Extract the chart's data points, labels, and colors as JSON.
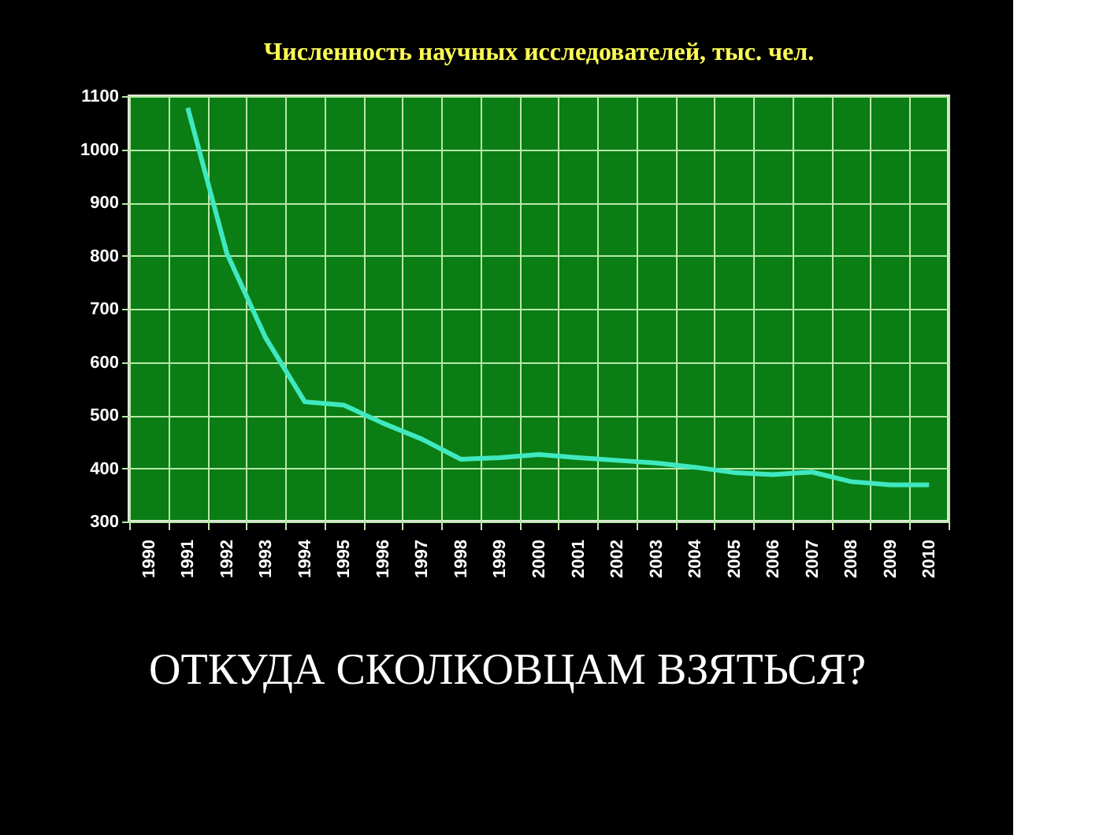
{
  "chart_data": {
    "type": "line",
    "title": "Численность научных исследователей, тыс. чел.",
    "categories": [
      "1990",
      "1991",
      "1992",
      "1993",
      "1994",
      "1995",
      "1996",
      "1997",
      "1998",
      "1999",
      "2000",
      "2001",
      "2002",
      "2003",
      "2004",
      "2005",
      "2006",
      "2007",
      "2008",
      "2009",
      "2010"
    ],
    "series": [
      {
        "color": "#40e8c0",
        "values": [
          null,
          1078,
          805,
          645,
          525,
          519,
          485,
          455,
          417,
          420,
          426,
          420,
          415,
          410,
          402,
          392,
          388,
          393,
          375,
          369,
          369
        ]
      }
    ],
    "ylim": [
      300,
      1100
    ],
    "yticks": [
      300,
      400,
      500,
      600,
      700,
      800,
      900,
      1000,
      1100
    ],
    "grid": true,
    "annotations": [
      "ОТКУДА СКОЛКОВЦАМ ВЗЯТЬСЯ?"
    ]
  }
}
